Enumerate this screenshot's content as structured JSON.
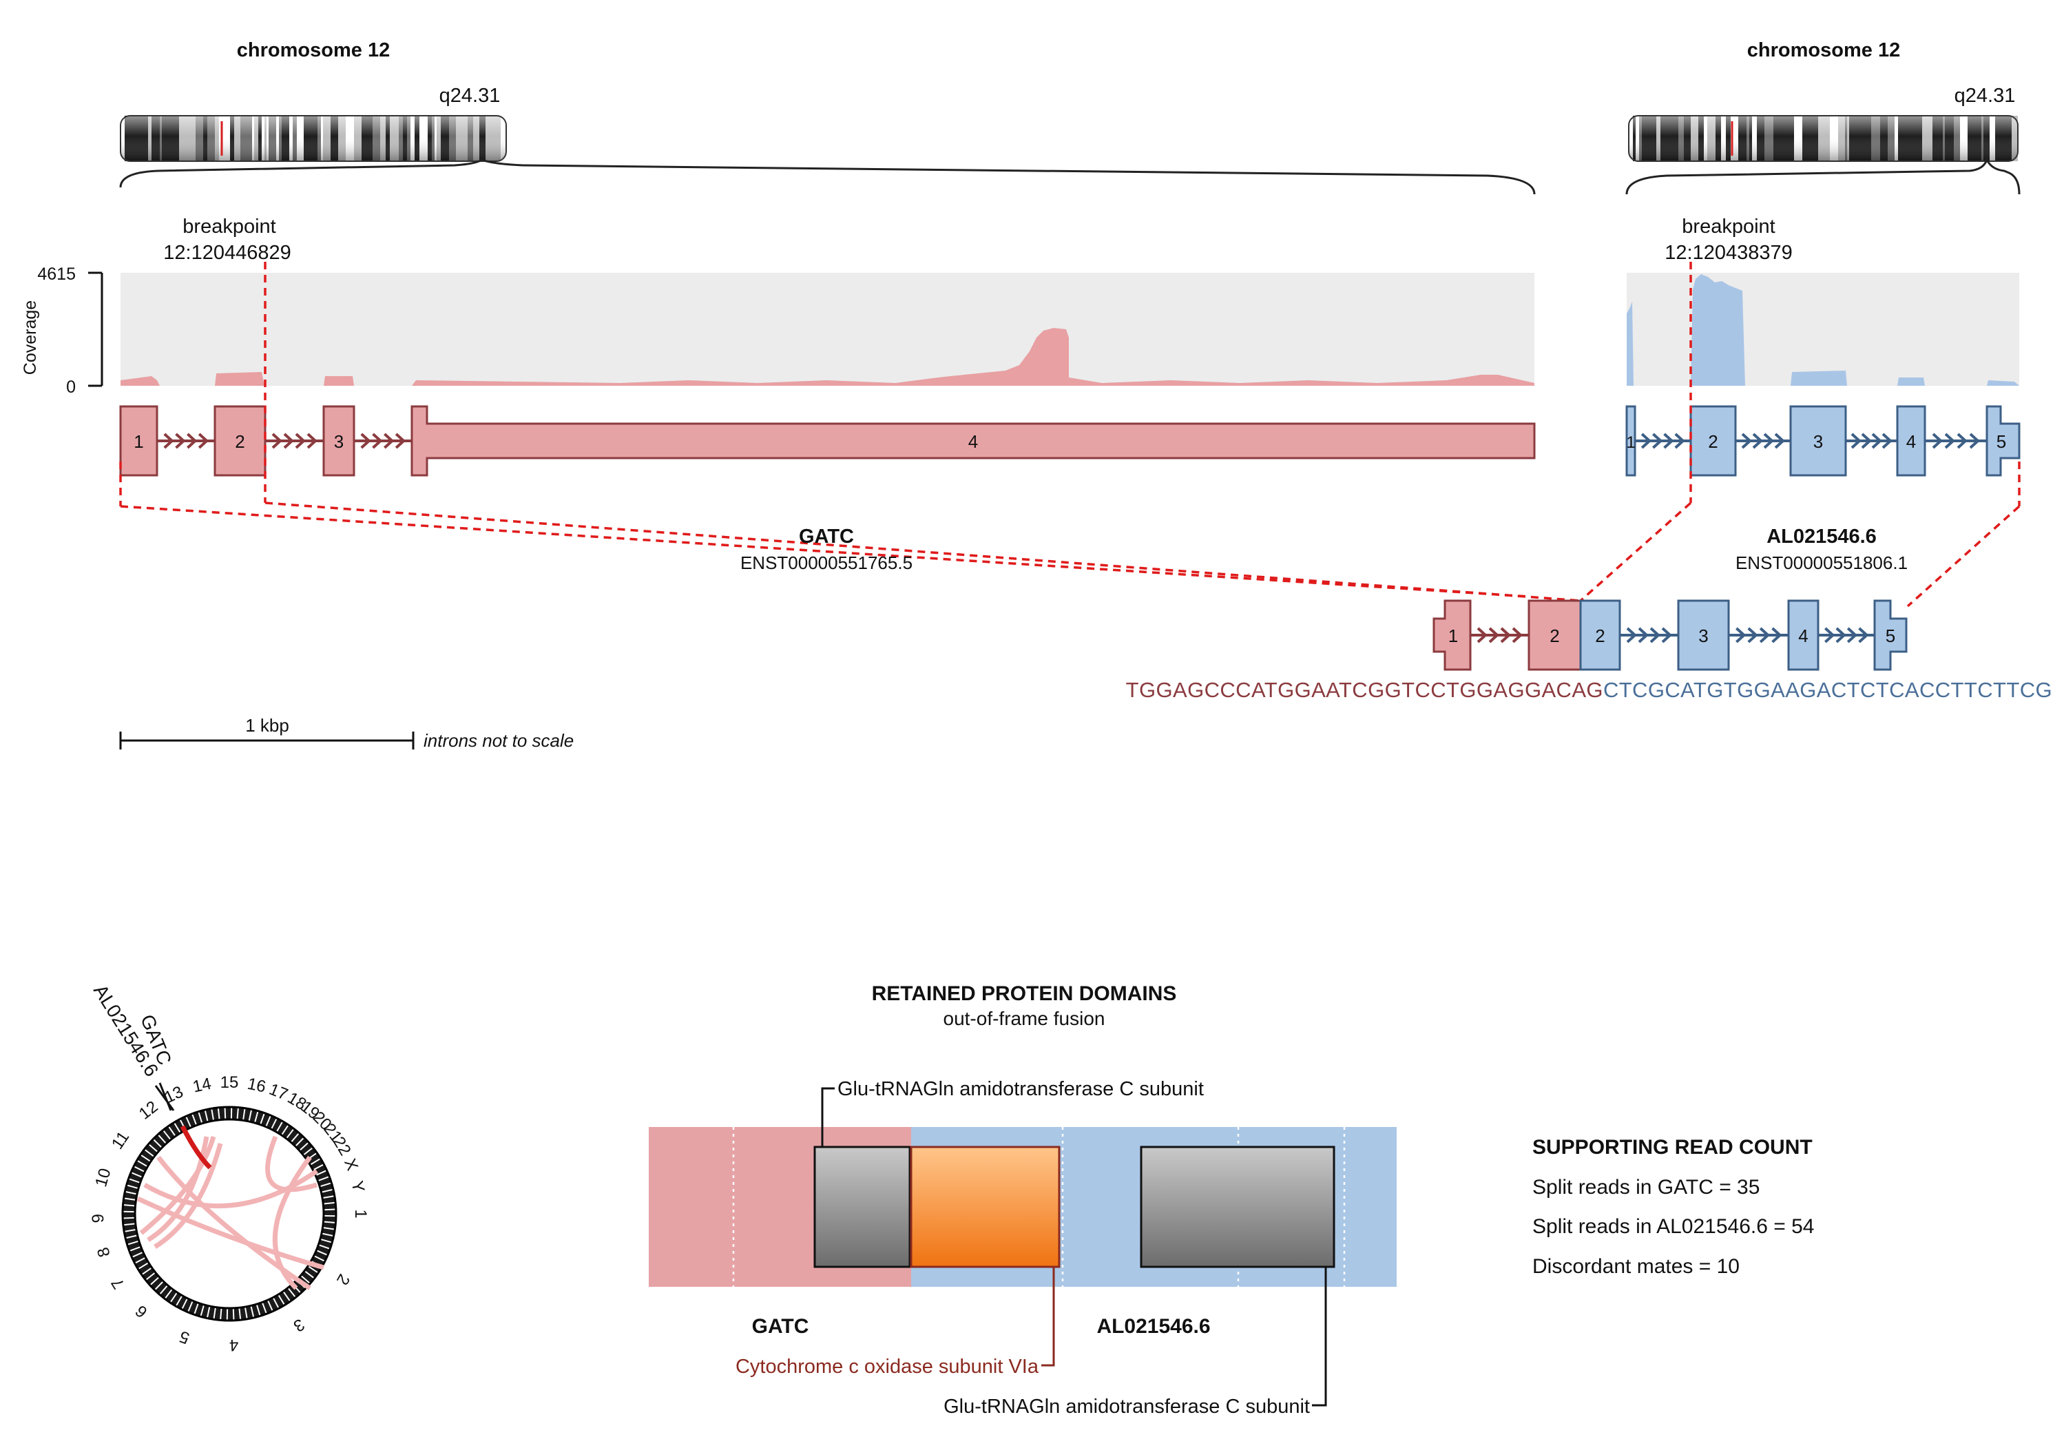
{
  "left": {
    "chromosome_title": "chromosome 12",
    "band": "q24.31",
    "breakpoint_label": "breakpoint",
    "breakpoint_pos": "12:120446829",
    "gene": "GATC",
    "transcript": "ENST00000551765.5",
    "exons": [
      "1",
      "2",
      "3",
      "4"
    ],
    "color_fill": "#e6a3a6",
    "color_stroke": "#8b3b3f"
  },
  "right": {
    "chromosome_title": "chromosome 12",
    "band": "q24.31",
    "breakpoint_label": "breakpoint",
    "breakpoint_pos": "12:120438379",
    "gene": "AL021546.6",
    "transcript": "ENST00000551806.1",
    "exons": [
      "1",
      "2",
      "3",
      "4",
      "5"
    ],
    "color_fill": "#aac7e6",
    "color_stroke": "#3d5f86"
  },
  "coverage": {
    "axis_label": "Coverage",
    "max_label": "4615",
    "min_label": "0",
    "max": 4615
  },
  "fusion": {
    "exons_left": [
      "1",
      "2"
    ],
    "exons_right": [
      "2",
      "3",
      "4",
      "5"
    ],
    "seq_left": "TGGAGCCCATGGAATCGGTCCTGGAGGACAG",
    "seq_right": "CTCGCATGTGGAAGACTCTCACCTTCTTCG",
    "seq_left_color": "#8b3b3f",
    "seq_right_color": "#4a6f98"
  },
  "scale": {
    "scale_label": "1 kbp",
    "note": "introns not to scale"
  },
  "circos": {
    "gene_labels": [
      "AL021546.6",
      "GATC"
    ],
    "chromosomes": [
      "1",
      "2",
      "3",
      "4",
      "5",
      "6",
      "7",
      "8",
      "9",
      "10",
      "11",
      "12",
      "13",
      "14",
      "15",
      "16",
      "17",
      "18",
      "19",
      "20",
      "21",
      "22",
      "X",
      "Y"
    ]
  },
  "domains": {
    "title": "RETAINED PROTEIN DOMAINS",
    "subtitle": "out-of-frame fusion",
    "gene_left": "GATC",
    "gene_right": "AL021546.6",
    "domain_top": "Glu-tRNAGln amidotransferase C subunit",
    "domain_mid": "Cytochrome c oxidase subunit VIa",
    "domain_bottom": "Glu-tRNAGln amidotransferase C subunit",
    "mid_color": "#8b2a1f",
    "orange": "#f28a1e"
  },
  "reads": {
    "title": "SUPPORTING READ COUNT",
    "lines": [
      "Split reads in GATC = 35",
      "Split reads in AL021546.6 = 54",
      "Discordant mates = 10"
    ]
  }
}
